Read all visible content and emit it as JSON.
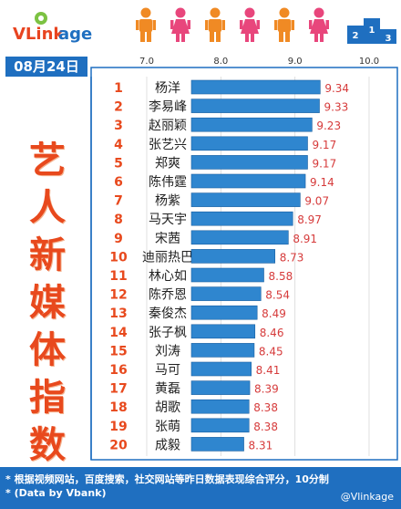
{
  "brand": {
    "name_a": "VLink",
    "name_b": "age"
  },
  "date": "08月24日",
  "side_title": [
    "艺",
    "人",
    "新",
    "媒",
    "体",
    "指",
    "数"
  ],
  "footer": {
    "note1": "* 根据视频网站，百度搜索，社交网站等昨日数据表现综合评分，10分制",
    "note2": "* (Data by Vbank)",
    "credit": "@Vlinkage"
  },
  "colors": {
    "bar": "#2f86cf",
    "bar_edge": "#1a5fa0",
    "rank": "#e8491d",
    "value": "#d63b3b",
    "blue": "#1f6fc0",
    "person_male": "#f08a24",
    "person_female": "#e8467c"
  },
  "chart_data": {
    "type": "bar",
    "orientation": "horizontal",
    "xlim": [
      6.25,
      10.0
    ],
    "xticks": [
      "7.0",
      "8.0",
      "9.0",
      "10.0"
    ],
    "xtick_values": [
      7.0,
      8.0,
      9.0,
      10.0
    ],
    "ranks": [
      "1",
      "2",
      "3",
      "4",
      "5",
      "6",
      "7",
      "8",
      "9",
      "10",
      "11",
      "12",
      "13",
      "14",
      "15",
      "16",
      "17",
      "18",
      "19",
      "20"
    ],
    "categories": [
      "杨洋",
      "李易峰",
      "赵丽颖",
      "张艺兴",
      "郑爽",
      "陈伟霆",
      "杨紫",
      "马天宇",
      "宋茜",
      "迪丽热巴",
      "林心如",
      "陈乔恩",
      "秦俊杰",
      "张子枫",
      "刘涛",
      "马可",
      "黄磊",
      "胡歌",
      "张萌",
      "成毅"
    ],
    "values": [
      9.34,
      9.33,
      9.23,
      9.17,
      9.17,
      9.14,
      9.07,
      8.97,
      8.91,
      8.73,
      8.58,
      8.54,
      8.49,
      8.46,
      8.45,
      8.41,
      8.39,
      8.38,
      8.38,
      8.31
    ],
    "value_labels": [
      "9.34",
      "9.33",
      "9.23",
      "9.17",
      "9.17",
      "9.14",
      "9.07",
      "8.97",
      "8.91",
      "8.73",
      "8.58",
      "8.54",
      "8.49",
      "8.46",
      "8.45",
      "8.41",
      "8.39",
      "8.38",
      "8.38",
      "8.31"
    ]
  }
}
